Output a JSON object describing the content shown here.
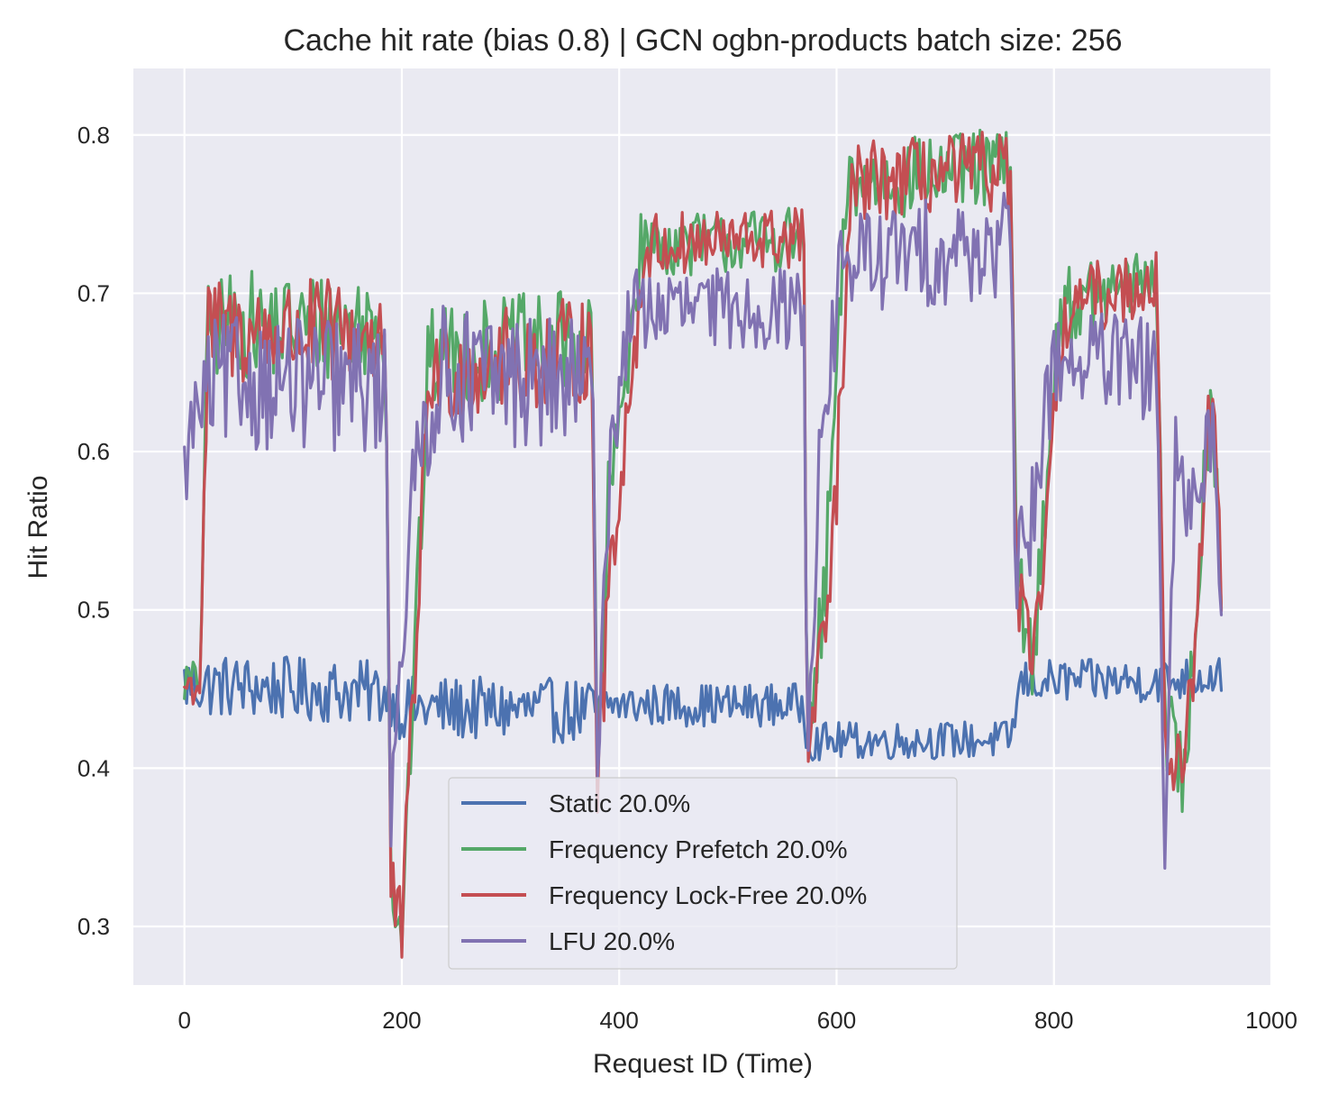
{
  "chart_data": {
    "type": "line",
    "title": "Cache hit rate (bias 0.8) | GCN ogbn-products batch size: 256",
    "xlabel": "Request ID (Time)",
    "ylabel": "Hit Ratio",
    "xlim": [
      -47,
      1000
    ],
    "ylim": [
      0.263,
      0.842
    ],
    "xticks": [
      0,
      200,
      400,
      600,
      800,
      1000
    ],
    "yticks": [
      0.3,
      0.4,
      0.5,
      0.6,
      0.7,
      0.8
    ],
    "xtick_labels": [
      "0",
      "200",
      "400",
      "600",
      "800",
      "1000"
    ],
    "ytick_labels": [
      "0.3",
      "0.4",
      "0.5",
      "0.6",
      "0.7",
      "0.8"
    ],
    "grid": true,
    "legend": "lower-center",
    "x_range": [
      0,
      955
    ],
    "series": [
      {
        "name": "Static 20.0%",
        "color": "#4c72b0",
        "phases": [
          {
            "x": 0,
            "y": 0.453,
            "noise": 0.012
          },
          {
            "x": 190,
            "y": 0.447,
            "noise": 0.012
          },
          {
            "x": 198,
            "y": 0.438,
            "noise": 0.012
          },
          {
            "x": 380,
            "y": 0.436,
            "noise": 0.012
          },
          {
            "x": 385,
            "y": 0.44,
            "noise": 0.008
          },
          {
            "x": 570,
            "y": 0.44,
            "noise": 0.008
          },
          {
            "x": 573,
            "y": 0.417,
            "noise": 0.007
          },
          {
            "x": 760,
            "y": 0.418,
            "noise": 0.007
          },
          {
            "x": 770,
            "y": 0.455,
            "noise": 0.008
          },
          {
            "x": 900,
            "y": 0.455,
            "noise": 0.008
          },
          {
            "x": 905,
            "y": 0.455,
            "noise": 0.008
          },
          {
            "x": 955,
            "y": 0.46,
            "noise": 0.008
          }
        ]
      },
      {
        "name": "Frequency Prefetch 20.0%",
        "color": "#55a868",
        "phases": [
          {
            "x": 0,
            "y": 0.455,
            "noise": 0.008
          },
          {
            "x": 14,
            "y": 0.455,
            "noise": 0.008
          },
          {
            "x": 22,
            "y": 0.68,
            "noise": 0.02
          },
          {
            "x": 185,
            "y": 0.68,
            "noise": 0.02
          },
          {
            "x": 190,
            "y": 0.33,
            "noise": 0.015
          },
          {
            "x": 200,
            "y": 0.3,
            "noise": 0.015
          },
          {
            "x": 225,
            "y": 0.66,
            "noise": 0.02
          },
          {
            "x": 375,
            "y": 0.67,
            "noise": 0.02
          },
          {
            "x": 380,
            "y": 0.39,
            "noise": 0.015
          },
          {
            "x": 390,
            "y": 0.56,
            "noise": 0.02
          },
          {
            "x": 420,
            "y": 0.73,
            "noise": 0.012
          },
          {
            "x": 570,
            "y": 0.735,
            "noise": 0.012
          },
          {
            "x": 573,
            "y": 0.4,
            "noise": 0.015
          },
          {
            "x": 590,
            "y": 0.52,
            "noise": 0.02
          },
          {
            "x": 610,
            "y": 0.77,
            "noise": 0.015
          },
          {
            "x": 760,
            "y": 0.78,
            "noise": 0.015
          },
          {
            "x": 765,
            "y": 0.54,
            "noise": 0.02
          },
          {
            "x": 780,
            "y": 0.46,
            "noise": 0.015
          },
          {
            "x": 805,
            "y": 0.69,
            "noise": 0.015
          },
          {
            "x": 895,
            "y": 0.71,
            "noise": 0.012
          },
          {
            "x": 902,
            "y": 0.43,
            "noise": 0.02
          },
          {
            "x": 920,
            "y": 0.39,
            "noise": 0.015
          },
          {
            "x": 945,
            "y": 0.65,
            "noise": 0.02
          },
          {
            "x": 955,
            "y": 0.51,
            "noise": 0.02
          }
        ]
      },
      {
        "name": "Frequency Lock-Free 20.0%",
        "color": "#c44e52",
        "phases": [
          {
            "x": 0,
            "y": 0.452,
            "noise": 0.008
          },
          {
            "x": 14,
            "y": 0.452,
            "noise": 0.008
          },
          {
            "x": 22,
            "y": 0.675,
            "noise": 0.02
          },
          {
            "x": 185,
            "y": 0.675,
            "noise": 0.02
          },
          {
            "x": 190,
            "y": 0.325,
            "noise": 0.015
          },
          {
            "x": 200,
            "y": 0.295,
            "noise": 0.015
          },
          {
            "x": 225,
            "y": 0.65,
            "noise": 0.02
          },
          {
            "x": 375,
            "y": 0.665,
            "noise": 0.02
          },
          {
            "x": 380,
            "y": 0.385,
            "noise": 0.015
          },
          {
            "x": 392,
            "y": 0.53,
            "noise": 0.02
          },
          {
            "x": 425,
            "y": 0.73,
            "noise": 0.012
          },
          {
            "x": 570,
            "y": 0.735,
            "noise": 0.012
          },
          {
            "x": 573,
            "y": 0.395,
            "noise": 0.015
          },
          {
            "x": 595,
            "y": 0.52,
            "noise": 0.02
          },
          {
            "x": 615,
            "y": 0.77,
            "noise": 0.015
          },
          {
            "x": 760,
            "y": 0.778,
            "noise": 0.015
          },
          {
            "x": 765,
            "y": 0.52,
            "noise": 0.02
          },
          {
            "x": 780,
            "y": 0.455,
            "noise": 0.015
          },
          {
            "x": 810,
            "y": 0.69,
            "noise": 0.015
          },
          {
            "x": 895,
            "y": 0.71,
            "noise": 0.012
          },
          {
            "x": 902,
            "y": 0.42,
            "noise": 0.02
          },
          {
            "x": 920,
            "y": 0.39,
            "noise": 0.015
          },
          {
            "x": 945,
            "y": 0.64,
            "noise": 0.02
          },
          {
            "x": 955,
            "y": 0.505,
            "noise": 0.02
          }
        ]
      },
      {
        "name": "LFU 20.0%",
        "color": "#8172b2",
        "phases": [
          {
            "x": 0,
            "y": 0.585,
            "noise": 0.015
          },
          {
            "x": 8,
            "y": 0.62,
            "noise": 0.018
          },
          {
            "x": 30,
            "y": 0.645,
            "noise": 0.025
          },
          {
            "x": 185,
            "y": 0.64,
            "noise": 0.025
          },
          {
            "x": 190,
            "y": 0.38,
            "noise": 0.02
          },
          {
            "x": 198,
            "y": 0.47,
            "noise": 0.02
          },
          {
            "x": 215,
            "y": 0.6,
            "noise": 0.025
          },
          {
            "x": 235,
            "y": 0.65,
            "noise": 0.025
          },
          {
            "x": 375,
            "y": 0.64,
            "noise": 0.025
          },
          {
            "x": 380,
            "y": 0.42,
            "noise": 0.02
          },
          {
            "x": 392,
            "y": 0.6,
            "noise": 0.02
          },
          {
            "x": 410,
            "y": 0.69,
            "noise": 0.015
          },
          {
            "x": 570,
            "y": 0.69,
            "noise": 0.015
          },
          {
            "x": 573,
            "y": 0.42,
            "noise": 0.02
          },
          {
            "x": 585,
            "y": 0.6,
            "noise": 0.02
          },
          {
            "x": 605,
            "y": 0.72,
            "noise": 0.02
          },
          {
            "x": 760,
            "y": 0.73,
            "noise": 0.02
          },
          {
            "x": 765,
            "y": 0.52,
            "noise": 0.02
          },
          {
            "x": 780,
            "y": 0.56,
            "noise": 0.02
          },
          {
            "x": 800,
            "y": 0.66,
            "noise": 0.02
          },
          {
            "x": 895,
            "y": 0.65,
            "noise": 0.02
          },
          {
            "x": 902,
            "y": 0.34,
            "noise": 0.015
          },
          {
            "x": 912,
            "y": 0.58,
            "noise": 0.025
          },
          {
            "x": 925,
            "y": 0.56,
            "noise": 0.02
          },
          {
            "x": 945,
            "y": 0.62,
            "noise": 0.02
          },
          {
            "x": 955,
            "y": 0.5,
            "noise": 0.02
          }
        ]
      }
    ]
  }
}
